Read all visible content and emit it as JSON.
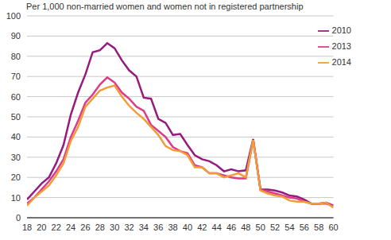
{
  "chart_data": {
    "type": "line",
    "title": "Per 1,000 non-married women and women not in registered partnership",
    "x": [
      18,
      19,
      20,
      21,
      22,
      23,
      24,
      25,
      26,
      27,
      28,
      29,
      30,
      31,
      32,
      33,
      34,
      35,
      36,
      37,
      38,
      39,
      40,
      41,
      42,
      43,
      44,
      45,
      46,
      47,
      48,
      49,
      50,
      51,
      52,
      53,
      54,
      55,
      56,
      57,
      58,
      59,
      60
    ],
    "series": [
      {
        "name": "2010",
        "color": "#951b81",
        "values": [
          9,
          13,
          17,
          20,
          27,
          36,
          51,
          62,
          71,
          82,
          83,
          86.5,
          84,
          78,
          73,
          70,
          59.5,
          59,
          49,
          47,
          41,
          41.5,
          36,
          31,
          29,
          28,
          26,
          23,
          24,
          23,
          23.5,
          39,
          14,
          14,
          13.5,
          12.5,
          11,
          10.5,
          9,
          7,
          7,
          7.5,
          6
        ]
      },
      {
        "name": "2013",
        "color": "#dc3b8c",
        "values": [
          7,
          10,
          14,
          18,
          23,
          29,
          40,
          48,
          57,
          61,
          66,
          69.5,
          67,
          62,
          59,
          55,
          53,
          46,
          43,
          40,
          35,
          33,
          32,
          26,
          25,
          22,
          22,
          21,
          20,
          19.5,
          19.5,
          38.5,
          14,
          13,
          12,
          11,
          10,
          9.5,
          8,
          7,
          7,
          7,
          6
        ]
      },
      {
        "name": "2014",
        "color": "#f39c35",
        "values": [
          6,
          10,
          13,
          16,
          21,
          27,
          38,
          45,
          55,
          59,
          63,
          64.5,
          65.5,
          60,
          55.5,
          52,
          49,
          45,
          41,
          35.5,
          33.5,
          33,
          31,
          25,
          25,
          22,
          22,
          20,
          21,
          22,
          20,
          38.5,
          13.5,
          12,
          11,
          10.5,
          8.5,
          8,
          8,
          7,
          7,
          7.5,
          5
        ]
      }
    ],
    "xlim": [
      18,
      60
    ],
    "ylim": [
      0,
      100
    ],
    "xticks": [
      18,
      20,
      22,
      24,
      26,
      28,
      30,
      32,
      34,
      36,
      38,
      40,
      42,
      44,
      46,
      48,
      50,
      52,
      54,
      56,
      58,
      60
    ],
    "yticks": [
      0,
      10,
      20,
      30,
      40,
      50,
      60,
      70,
      80,
      90,
      100
    ],
    "grid": true,
    "legend": "upper right"
  }
}
